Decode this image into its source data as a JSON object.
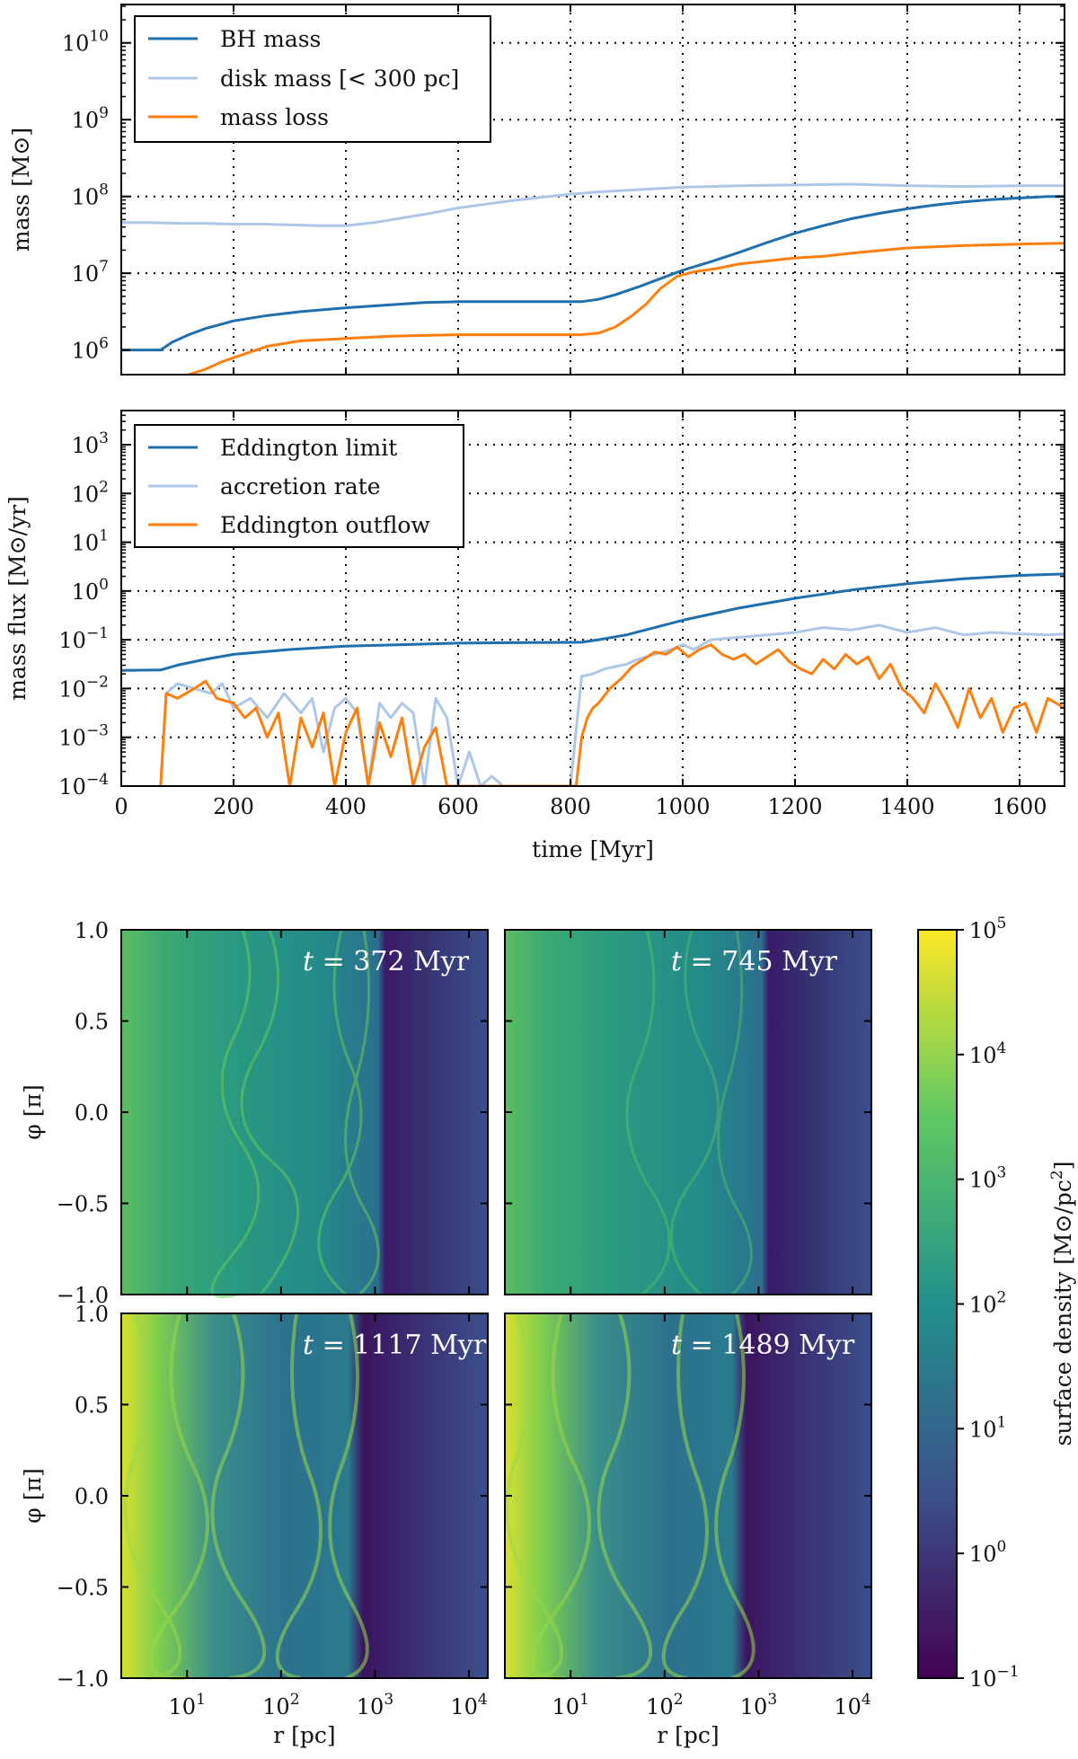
{
  "chart_data": [
    {
      "type": "line",
      "id": "mass",
      "ylabel": "mass [M⊙]",
      "yscale": "log",
      "xlim": [
        0,
        1680
      ],
      "ylim_log10": [
        5.68,
        10.5
      ],
      "xticks": [
        0,
        200,
        400,
        600,
        800,
        1000,
        1200,
        1400,
        1600
      ],
      "yticks": [
        {
          "v": 6,
          "base": "10",
          "exp": "6"
        },
        {
          "v": 7,
          "base": "10",
          "exp": "7"
        },
        {
          "v": 8,
          "base": "10",
          "exp": "8"
        },
        {
          "v": 9,
          "base": "10",
          "exp": "9"
        },
        {
          "v": 10,
          "base": "10",
          "exp": "10"
        }
      ],
      "series": [
        {
          "name": "BH mass",
          "color": "#1f6fae",
          "x": [
            0,
            70,
            90,
            120,
            150,
            200,
            260,
            320,
            400,
            480,
            540,
            600,
            700,
            820,
            850,
            880,
            920,
            960,
            1000,
            1050,
            1100,
            1150,
            1200,
            1250,
            1300,
            1350,
            1400,
            1450,
            1500,
            1550,
            1600,
            1650,
            1680
          ],
          "y": [
            6.0,
            6.0,
            6.1,
            6.2,
            6.28,
            6.38,
            6.45,
            6.5,
            6.55,
            6.59,
            6.62,
            6.63,
            6.63,
            6.63,
            6.66,
            6.72,
            6.82,
            6.93,
            7.04,
            7.15,
            7.27,
            7.4,
            7.52,
            7.62,
            7.71,
            7.78,
            7.84,
            7.89,
            7.93,
            7.96,
            7.98,
            8.0,
            8.0
          ]
        },
        {
          "name": "disk mass [< 300 pc]",
          "color": "#aec7e8",
          "x": [
            0,
            50,
            100,
            150,
            200,
            250,
            300,
            350,
            400,
            450,
            500,
            550,
            600,
            650,
            700,
            750,
            800,
            850,
            900,
            950,
            1000,
            1100,
            1200,
            1300,
            1400,
            1500,
            1600,
            1680
          ],
          "y": [
            7.66,
            7.66,
            7.65,
            7.65,
            7.64,
            7.64,
            7.63,
            7.62,
            7.62,
            7.66,
            7.72,
            7.78,
            7.85,
            7.9,
            7.95,
            7.99,
            8.03,
            8.06,
            8.08,
            8.1,
            8.12,
            8.14,
            8.15,
            8.16,
            8.14,
            8.13,
            8.14,
            8.14
          ]
        },
        {
          "name": "mass loss",
          "color": "#ff7f0e",
          "x": [
            120,
            150,
            180,
            220,
            260,
            320,
            400,
            480,
            540,
            600,
            700,
            820,
            850,
            880,
            910,
            935,
            960,
            990,
            1020,
            1060,
            1100,
            1150,
            1200,
            1250,
            1300,
            1400,
            1500,
            1600,
            1680
          ],
          "y": [
            5.68,
            5.75,
            5.85,
            5.95,
            6.05,
            6.12,
            6.15,
            6.18,
            6.19,
            6.2,
            6.2,
            6.2,
            6.22,
            6.3,
            6.45,
            6.6,
            6.8,
            6.96,
            7.02,
            7.06,
            7.12,
            7.16,
            7.2,
            7.22,
            7.26,
            7.33,
            7.36,
            7.38,
            7.39
          ]
        }
      ],
      "legend": {
        "loc": "upper-left",
        "labels": [
          "BH mass",
          "disk mass [< 300 pc]",
          "mass loss"
        ]
      }
    },
    {
      "type": "line",
      "id": "flux",
      "xlabel": "time [Myr]",
      "ylabel": "mass flux [M⊙/yr]",
      "yscale": "log",
      "xlim": [
        0,
        1680
      ],
      "ylim_log10": [
        -4,
        3.7
      ],
      "xticks": [
        0,
        200,
        400,
        600,
        800,
        1000,
        1200,
        1400,
        1600
      ],
      "yticks": [
        {
          "v": -4,
          "base": "10",
          "exp": "−4"
        },
        {
          "v": -3,
          "base": "10",
          "exp": "−3"
        },
        {
          "v": -2,
          "base": "10",
          "exp": "−2"
        },
        {
          "v": -1,
          "base": "10",
          "exp": "−1"
        },
        {
          "v": 0,
          "base": "10",
          "exp": "0"
        },
        {
          "v": 1,
          "base": "10",
          "exp": "1"
        },
        {
          "v": 2,
          "base": "10",
          "exp": "2"
        },
        {
          "v": 3,
          "base": "10",
          "exp": "3"
        }
      ],
      "series": [
        {
          "name": "Eddington limit",
          "color": "#1f6fae",
          "x": [
            0,
            70,
            100,
            150,
            200,
            300,
            400,
            500,
            600,
            700,
            820,
            850,
            900,
            950,
            1000,
            1100,
            1200,
            1300,
            1400,
            1500,
            1600,
            1680
          ],
          "y": [
            -1.63,
            -1.62,
            -1.52,
            -1.4,
            -1.3,
            -1.2,
            -1.13,
            -1.1,
            -1.07,
            -1.06,
            -1.05,
            -1.0,
            -0.9,
            -0.75,
            -0.6,
            -0.35,
            -0.15,
            0.02,
            0.15,
            0.25,
            0.32,
            0.35
          ]
        },
        {
          "name": "accretion rate",
          "color": "#aec7e8",
          "x": [
            70,
            80,
            100,
            130,
            160,
            180,
            200,
            230,
            260,
            290,
            320,
            340,
            360,
            380,
            400,
            420,
            440,
            460,
            480,
            500,
            520,
            540,
            560,
            580,
            600,
            620,
            640,
            660,
            680,
            700,
            800,
            820,
            840,
            860,
            880,
            900,
            920,
            950,
            980,
            1000,
            1020,
            1050,
            1100,
            1150,
            1200,
            1250,
            1300,
            1350,
            1400,
            1450,
            1500,
            1550,
            1600,
            1650,
            1680
          ],
          "y": [
            -4,
            -2.1,
            -1.9,
            -2.0,
            -2.1,
            -1.9,
            -2.4,
            -2.2,
            -2.6,
            -2.1,
            -2.5,
            -2.2,
            -3.3,
            -2.4,
            -2.2,
            -2.5,
            -4,
            -2.3,
            -2.6,
            -2.3,
            -2.5,
            -4,
            -2.2,
            -2.6,
            -4,
            -3.3,
            -4,
            -3.8,
            -4,
            -4,
            -4,
            -1.75,
            -1.7,
            -1.6,
            -1.55,
            -1.5,
            -1.4,
            -1.3,
            -1.2,
            -1.1,
            -1.2,
            -1.0,
            -0.95,
            -0.9,
            -0.85,
            -0.75,
            -0.8,
            -0.7,
            -0.85,
            -0.75,
            -0.9,
            -0.85,
            -0.88,
            -0.9,
            -0.88
          ]
        },
        {
          "name": "Eddington outflow",
          "color": "#ff7f0e",
          "x": [
            70,
            80,
            100,
            130,
            150,
            170,
            200,
            220,
            240,
            260,
            280,
            300,
            320,
            340,
            360,
            380,
            400,
            420,
            440,
            460,
            480,
            500,
            520,
            540,
            560,
            580,
            600,
            780,
            810,
            820,
            830,
            840,
            850,
            870,
            890,
            910,
            930,
            950,
            970,
            990,
            1010,
            1030,
            1050,
            1070,
            1090,
            1110,
            1130,
            1150,
            1170,
            1190,
            1210,
            1230,
            1250,
            1270,
            1290,
            1310,
            1330,
            1350,
            1370,
            1390,
            1410,
            1430,
            1450,
            1470,
            1490,
            1510,
            1530,
            1550,
            1570,
            1590,
            1610,
            1630,
            1650,
            1680
          ],
          "y": [
            -4,
            -2.1,
            -2.2,
            -2.0,
            -1.85,
            -2.2,
            -2.3,
            -2.6,
            -2.4,
            -3.0,
            -2.5,
            -4,
            -2.6,
            -3.2,
            -2.5,
            -4,
            -2.9,
            -2.4,
            -4,
            -2.7,
            -3.4,
            -2.6,
            -4,
            -3.2,
            -2.8,
            -4,
            -4,
            -4,
            -4,
            -3.0,
            -2.6,
            -2.4,
            -2.3,
            -2.0,
            -1.8,
            -1.55,
            -1.4,
            -1.25,
            -1.3,
            -1.15,
            -1.35,
            -1.2,
            -1.1,
            -1.3,
            -1.4,
            -1.3,
            -1.5,
            -1.35,
            -1.2,
            -1.45,
            -1.6,
            -1.7,
            -1.4,
            -1.6,
            -1.3,
            -1.5,
            -1.35,
            -1.8,
            -1.5,
            -2.0,
            -2.2,
            -2.5,
            -1.9,
            -2.3,
            -2.8,
            -2.0,
            -2.6,
            -2.2,
            -2.9,
            -2.4,
            -2.3,
            -2.9,
            -2.2,
            -2.4
          ]
        }
      ],
      "legend": {
        "loc": "upper-left",
        "labels": [
          "Eddington limit",
          "accretion rate",
          "Eddington outflow"
        ]
      }
    },
    {
      "type": "heatmap",
      "id": "surface-density-maps",
      "xlabel": "r [pc]",
      "ylabel": "φ [π]",
      "xscale": "log",
      "xlim_log10": [
        0.3,
        4.2
      ],
      "ylim": [
        -1.0,
        1.0
      ],
      "xticks": [
        {
          "v": 1,
          "base": "10",
          "exp": "1"
        },
        {
          "v": 2,
          "base": "10",
          "exp": "2"
        },
        {
          "v": 3,
          "base": "10",
          "exp": "3"
        },
        {
          "v": 4,
          "base": "10",
          "exp": "4"
        }
      ],
      "yticks": [
        "1.0",
        "0.5",
        "0.0",
        "−0.5",
        "−1.0"
      ],
      "panels": [
        {
          "label_t": "t",
          "label_eq": " = 372 Myr"
        },
        {
          "label_t": "t",
          "label_eq": " = 745 Myr"
        },
        {
          "label_t": "t",
          "label_eq": " = 1117 Myr"
        },
        {
          "label_t": "t",
          "label_eq": " = 1489 Myr"
        }
      ],
      "colorbar": {
        "label": "surface density [M⊙/pc",
        "label_sup": "2",
        "label_end": "]",
        "scale": "log",
        "range_log10": [
          -1,
          5
        ],
        "ticks": [
          {
            "v": -1,
            "exp": "−1"
          },
          {
            "v": 0,
            "exp": "0"
          },
          {
            "v": 1,
            "exp": "1"
          },
          {
            "v": 2,
            "exp": "2"
          },
          {
            "v": 3,
            "exp": "3"
          },
          {
            "v": 4,
            "exp": "4"
          },
          {
            "v": 5,
            "exp": "5"
          }
        ],
        "colormap": [
          "#440154",
          "#3b528b",
          "#21918c",
          "#5ec962",
          "#fde725"
        ]
      }
    }
  ]
}
